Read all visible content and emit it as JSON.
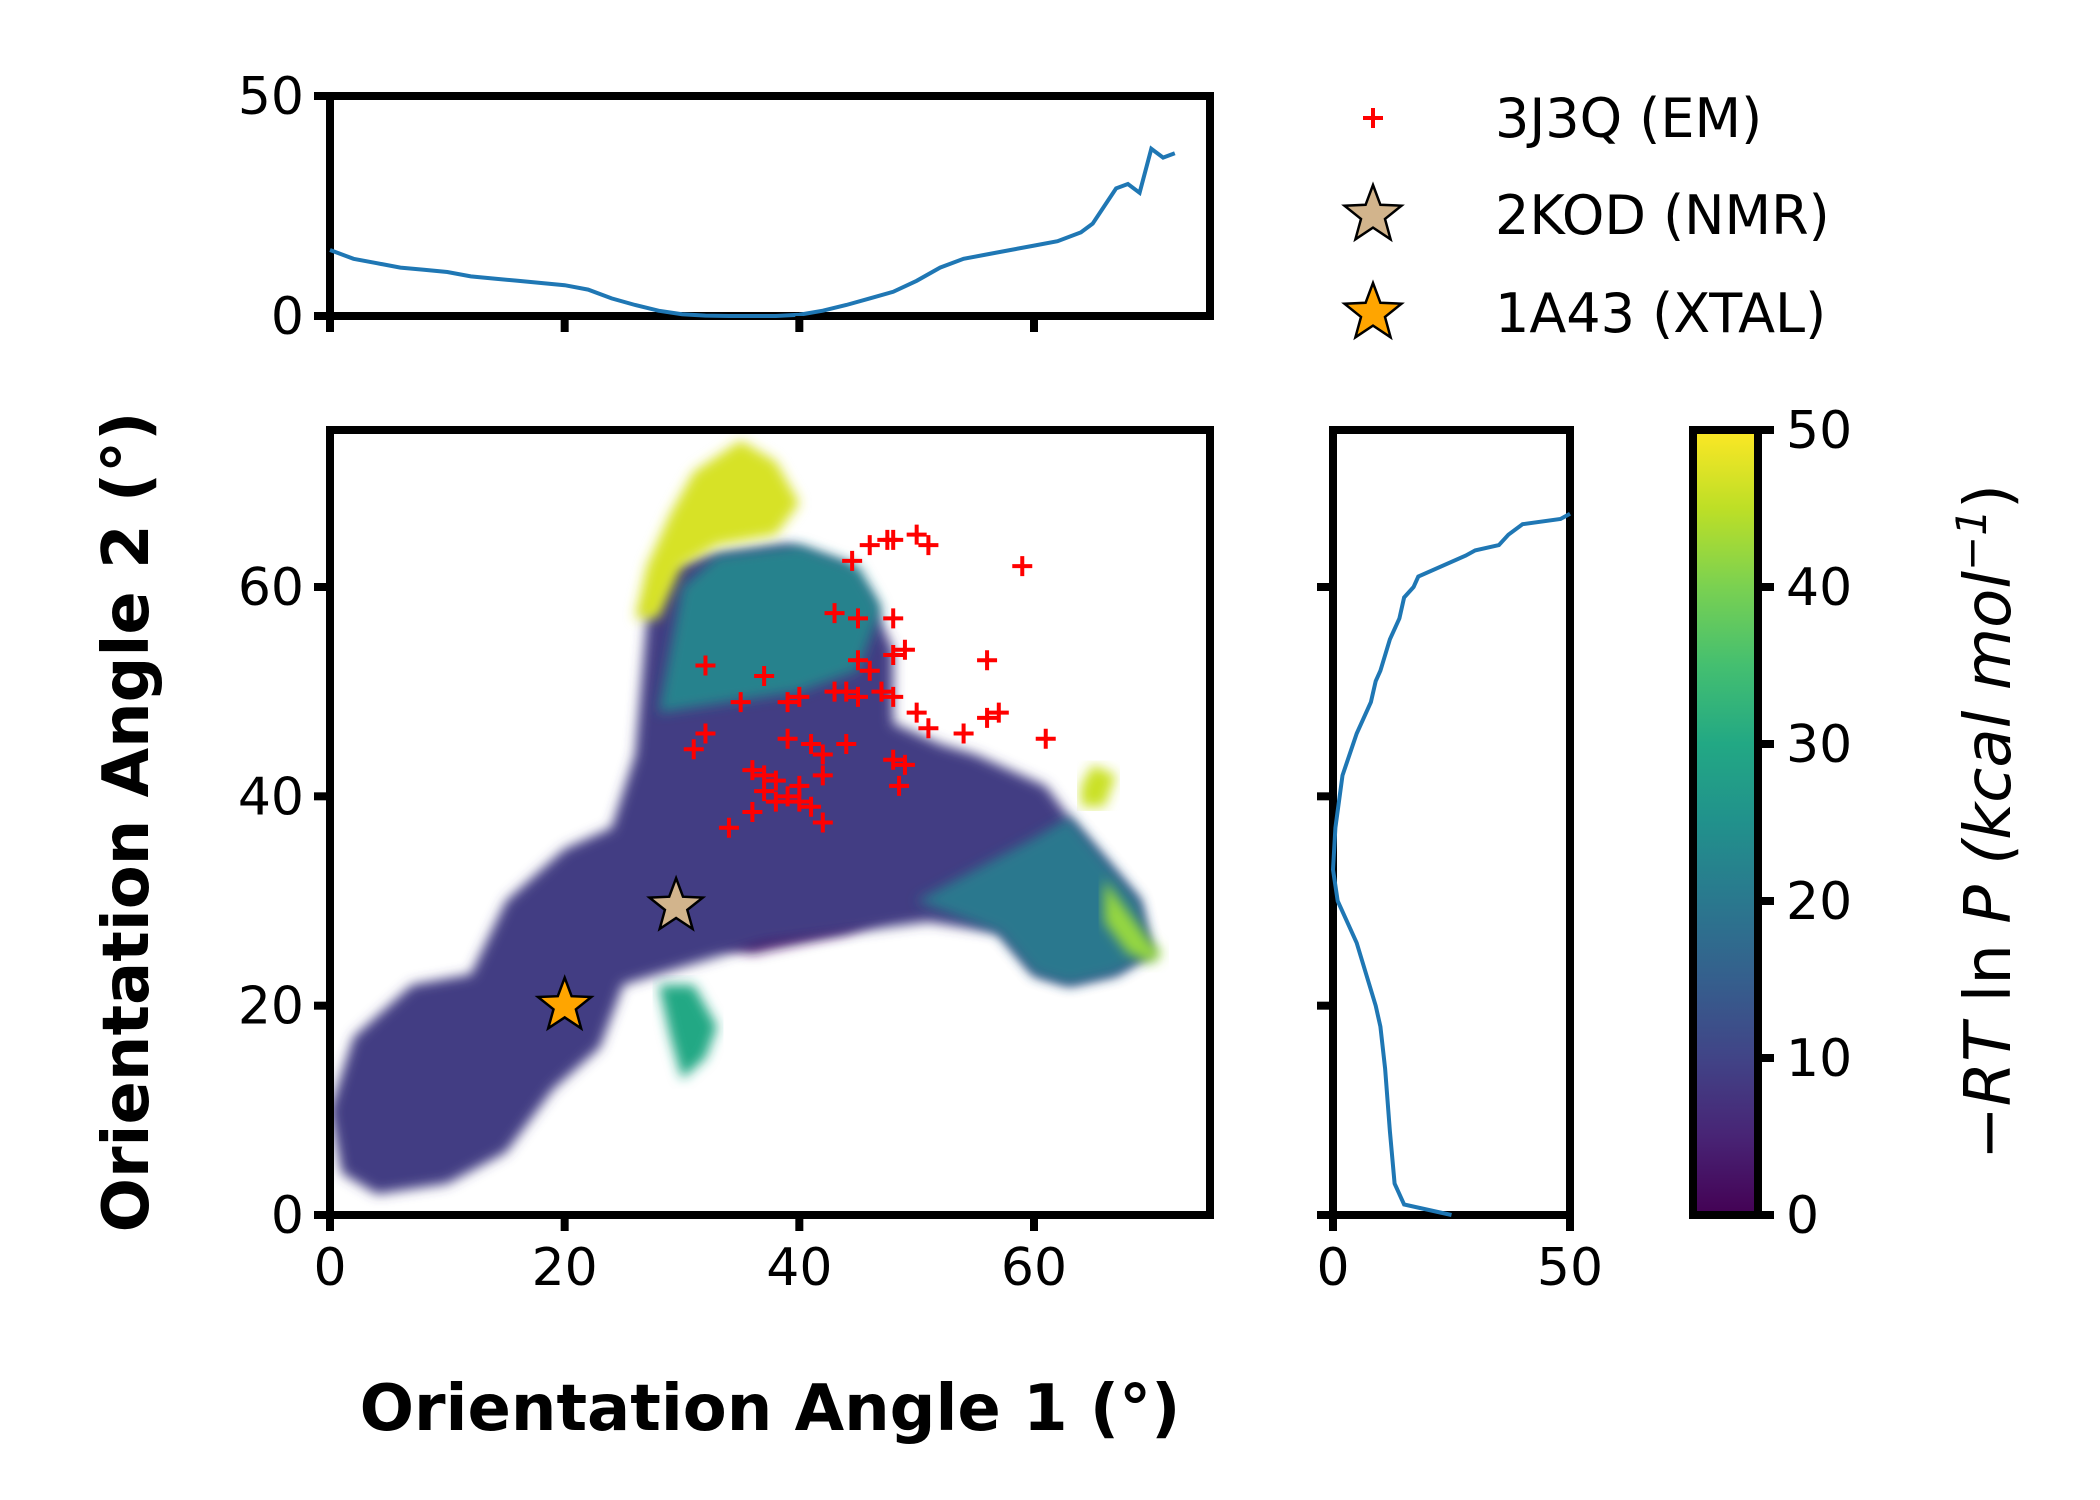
{
  "chart_data": [
    {
      "type": "heatmap",
      "panel": "joint",
      "xlabel": "Orientation Angle 1 (°)",
      "ylabel": "Orientation Angle 2 (°)",
      "xlim": [
        0,
        75
      ],
      "ylim": [
        0,
        75
      ],
      "xticks": [
        "0",
        "20",
        "40",
        "60"
      ],
      "yticks": [
        "0",
        "20",
        "40",
        "60"
      ],
      "colormap": "viridis",
      "clim": [
        0,
        50
      ],
      "regions": [
        {
          "name": "basin",
          "level": 3,
          "poly": [
            [
              30,
              27
            ],
            [
              36,
              25
            ],
            [
              44,
              27
            ],
            [
              50,
              30
            ],
            [
              47,
              36
            ],
            [
              44,
              42
            ],
            [
              40,
              47
            ],
            [
              34,
              47
            ],
            [
              28,
              42
            ],
            [
              26,
              35
            ]
          ]
        },
        {
          "name": "body",
          "level": 9,
          "poly": [
            [
              1,
              4
            ],
            [
              4,
              2
            ],
            [
              10,
              3
            ],
            [
              15,
              6
            ],
            [
              19,
              12
            ],
            [
              23,
              16
            ],
            [
              25,
              22
            ],
            [
              28,
              23
            ],
            [
              31,
              24
            ],
            [
              37,
              26
            ],
            [
              44,
              27
            ],
            [
              51,
              28
            ],
            [
              57,
              27
            ],
            [
              60,
              23
            ],
            [
              63,
              22
            ],
            [
              67,
              23
            ],
            [
              70,
              25
            ],
            [
              69,
              30
            ],
            [
              66,
              34
            ],
            [
              63,
              38
            ],
            [
              61,
              41
            ],
            [
              55,
              44
            ],
            [
              52,
              45
            ],
            [
              48,
              47
            ],
            [
              48,
              54
            ],
            [
              46,
              59
            ],
            [
              44,
              62
            ],
            [
              39,
              64
            ],
            [
              32,
              63
            ],
            [
              29,
              62
            ],
            [
              27,
              57
            ],
            [
              26,
              44
            ],
            [
              24,
              37
            ],
            [
              20,
              35
            ],
            [
              15,
              30
            ],
            [
              12,
              23
            ],
            [
              7,
              22
            ],
            [
              2,
              17
            ],
            [
              0,
              10
            ]
          ]
        },
        {
          "name": "upper-arm",
          "level": 22,
          "poly": [
            [
              28,
              48
            ],
            [
              30,
              60
            ],
            [
              33,
              63
            ],
            [
              40,
              64
            ],
            [
              45,
              62
            ],
            [
              47,
              58
            ],
            [
              45,
              52
            ],
            [
              40,
              50
            ]
          ]
        },
        {
          "name": "right-arm",
          "level": 20,
          "poly": [
            [
              50,
              30
            ],
            [
              57,
              27
            ],
            [
              60,
              23
            ],
            [
              63,
              22
            ],
            [
              67,
              23
            ],
            [
              70,
              25
            ],
            [
              69,
              30
            ],
            [
              66,
              34
            ],
            [
              63,
              38
            ],
            [
              60,
              36
            ],
            [
              55,
              33
            ]
          ]
        },
        {
          "name": "upper-top",
          "level": 47,
          "poly": [
            [
              26,
              57
            ],
            [
              27,
              62
            ],
            [
              29,
              67
            ],
            [
              31,
              71
            ],
            [
              35,
              74
            ],
            [
              38,
              72
            ],
            [
              40,
              68
            ],
            [
              38,
              65
            ],
            [
              33,
              64
            ],
            [
              30,
              62
            ],
            [
              28,
              57
            ]
          ]
        },
        {
          "name": "lower-lobe",
          "level": 30,
          "poly": [
            [
              28,
              22
            ],
            [
              31,
              22
            ],
            [
              33,
              18
            ],
            [
              32,
              15
            ],
            [
              30,
              13
            ],
            [
              29,
              17
            ]
          ]
        },
        {
          "name": "right-edge",
          "level": 42,
          "poly": [
            [
              66,
              32
            ],
            [
              68,
              29
            ],
            [
              70,
              26
            ],
            [
              71,
              25
            ],
            [
              70,
              24
            ],
            [
              68,
              25
            ],
            [
              66,
              28
            ]
          ]
        },
        {
          "name": "right-top",
          "level": 46,
          "poly": [
            [
              64,
              41
            ],
            [
              65,
              43
            ],
            [
              67,
              42
            ],
            [
              66,
              39
            ],
            [
              64,
              39
            ]
          ]
        }
      ],
      "series": [
        {
          "name": "3J3Q (EM)",
          "marker": "plus",
          "color": "#ff0000",
          "points": [
            [
              44.5,
              62.5
            ],
            [
              46,
              64
            ],
            [
              47.5,
              64.5
            ],
            [
              48,
              64.5
            ],
            [
              50,
              65
            ],
            [
              51,
              64
            ],
            [
              59,
              62
            ],
            [
              43,
              57.5
            ],
            [
              45,
              57
            ],
            [
              48,
              57
            ],
            [
              45,
              53
            ],
            [
              46,
              52
            ],
            [
              48,
              53.5
            ],
            [
              49,
              54
            ],
            [
              56,
              53
            ],
            [
              32,
              52.5
            ],
            [
              37,
              51.5
            ],
            [
              35,
              49
            ],
            [
              39,
              49
            ],
            [
              40,
              49.5
            ],
            [
              43,
              50
            ],
            [
              44,
              50
            ],
            [
              45,
              49.5
            ],
            [
              47,
              50
            ],
            [
              48,
              49.5
            ],
            [
              50,
              48
            ],
            [
              57,
              48
            ],
            [
              51,
              46.5
            ],
            [
              32,
              46
            ],
            [
              31,
              44.5
            ],
            [
              39,
              45.5
            ],
            [
              41,
              45
            ],
            [
              42,
              44
            ],
            [
              44,
              45
            ],
            [
              48,
              43.5
            ],
            [
              49,
              43
            ],
            [
              54,
              46
            ],
            [
              56,
              47.5
            ],
            [
              61,
              45.5
            ],
            [
              36,
              42.5
            ],
            [
              37,
              42
            ],
            [
              38,
              41.5
            ],
            [
              40,
              41
            ],
            [
              42,
              42
            ],
            [
              37,
              40.5
            ],
            [
              38,
              39.5
            ],
            [
              39,
              40
            ],
            [
              40,
              39.5
            ],
            [
              41,
              39
            ],
            [
              36,
              38.5
            ],
            [
              42,
              37.5
            ],
            [
              34,
              37
            ],
            [
              48.5,
              41
            ]
          ]
        },
        {
          "name": "2KOD (NMR)",
          "marker": "star",
          "color": "#d2b48c",
          "points": [
            [
              29.5,
              29.5
            ]
          ]
        },
        {
          "name": "1A43 (XTAL)",
          "marker": "star",
          "color": "#ffa500",
          "points": [
            [
              20,
              20
            ]
          ]
        }
      ]
    },
    {
      "type": "line",
      "panel": "top-marginal",
      "xlim": [
        0,
        75
      ],
      "ylim": [
        0,
        50
      ],
      "yticks": [
        "0",
        "50"
      ],
      "x": [
        0,
        2,
        4,
        6,
        8,
        10,
        12,
        14,
        16,
        18,
        20,
        22,
        24,
        26,
        28,
        30,
        32,
        34,
        36,
        38,
        40,
        42,
        44,
        46,
        48,
        50,
        52,
        54,
        56,
        58,
        60,
        62,
        64,
        65,
        66,
        67,
        68,
        69,
        70,
        71,
        72
      ],
      "y": [
        15,
        13,
        12,
        11,
        10.5,
        10,
        9,
        8.5,
        8,
        7.5,
        7,
        6,
        4,
        2.5,
        1.2,
        0.4,
        0.1,
        0,
        0,
        0,
        0.3,
        1.2,
        2.5,
        4,
        5.5,
        8,
        11,
        13,
        14,
        15,
        16,
        17,
        19,
        21,
        25,
        29,
        30,
        28,
        38,
        36,
        37
      ]
    },
    {
      "type": "line",
      "panel": "right-marginal",
      "xlim": [
        0,
        50
      ],
      "ylim": [
        0,
        75
      ],
      "xticks": [
        "0",
        "50"
      ],
      "x": [
        25,
        15,
        13,
        12,
        11,
        10,
        9,
        7,
        5,
        3,
        1,
        0,
        0.5,
        2,
        5,
        8,
        9,
        10,
        12,
        14,
        15,
        17,
        18,
        28,
        30,
        35,
        37,
        40,
        48,
        50
      ],
      "y": [
        0,
        1,
        3,
        8,
        14,
        18,
        20,
        23,
        26,
        28,
        30,
        33,
        37,
        42,
        46,
        49,
        51,
        52,
        55,
        57,
        59,
        60,
        61,
        63,
        63.5,
        64,
        65,
        66,
        66.5,
        67
      ]
    },
    {
      "type": "heatmap",
      "panel": "colorbar",
      "colormap": "viridis",
      "clim": [
        0,
        50
      ],
      "ticks": [
        "0",
        "10",
        "20",
        "30",
        "40",
        "50"
      ],
      "label_prefix": "−",
      "label_rt": "RT",
      "label_ln": " ln ",
      "label_p": "P",
      "label_units": "(kcal mol",
      "label_exp": "−1",
      "label_close": ")"
    }
  ]
}
